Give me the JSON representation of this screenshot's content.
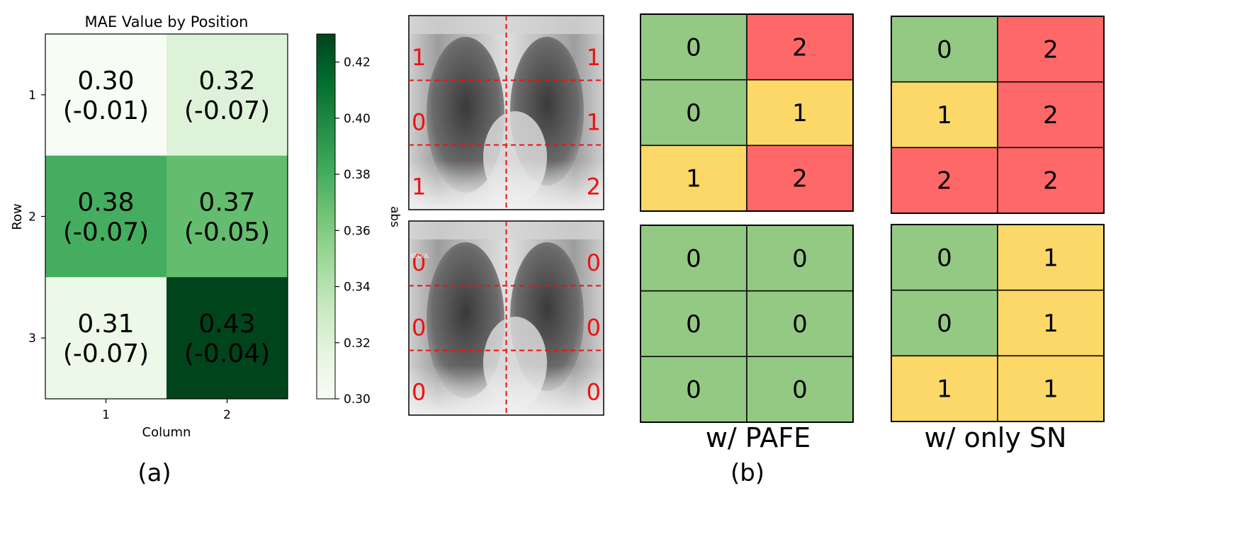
{
  "chart_data": [
    {
      "type": "heatmap",
      "title": "MAE Value by Position",
      "xlabel": "Column",
      "ylabel": "Row",
      "x_ticks": [
        "1",
        "2"
      ],
      "y_ticks": [
        "1",
        "2",
        "3"
      ],
      "cells": [
        [
          {
            "value": 0.3,
            "label": "0.30",
            "delta": "(-0.01)"
          },
          {
            "value": 0.32,
            "label": "0.32",
            "delta": "(-0.07)"
          }
        ],
        [
          {
            "value": 0.38,
            "label": "0.38",
            "delta": "(-0.07)"
          },
          {
            "value": 0.37,
            "label": "0.37",
            "delta": "(-0.05)"
          }
        ],
        [
          {
            "value": 0.31,
            "label": "0.31",
            "delta": "(-0.07)"
          },
          {
            "value": 0.43,
            "label": "0.43",
            "delta": "(-0.04)"
          }
        ]
      ],
      "colorbar": {
        "label": "abs",
        "range": [
          0.3,
          0.43
        ],
        "ticks": [
          "0.30",
          "0.32",
          "0.34",
          "0.36",
          "0.38",
          "0.40",
          "0.42"
        ],
        "colors": [
          "#f7fcf5",
          "#e5f5e0",
          "#c7e9c0",
          "#a1d99b",
          "#74c476",
          "#41ab5d",
          "#238b45",
          "#006d2c",
          "#00441b"
        ]
      },
      "caption": "(a)"
    },
    {
      "type": "table",
      "xray_labels": [
        [
          [
            "1",
            "1"
          ],
          [
            "0",
            "1"
          ],
          [
            "1",
            "2"
          ]
        ],
        [
          [
            "0",
            "0"
          ],
          [
            "0",
            "0"
          ],
          [
            "0",
            "0"
          ]
        ]
      ],
      "xray_overlay_text": "SEOUL",
      "grids": [
        {
          "name": "w/ PAFE",
          "rows": [
            [
              [
                "0",
                "2"
              ],
              [
                "0",
                "1"
              ],
              [
                "1",
                "2"
              ]
            ],
            [
              [
                "0",
                "0"
              ],
              [
                "0",
                "0"
              ],
              [
                "0",
                "0"
              ]
            ]
          ]
        },
        {
          "name": "w/ only SN",
          "rows": [
            [
              [
                "0",
                "2"
              ],
              [
                "1",
                "2"
              ],
              [
                "2",
                "2"
              ]
            ],
            [
              [
                "0",
                "1"
              ],
              [
                "0",
                "1"
              ],
              [
                "1",
                "1"
              ]
            ]
          ]
        }
      ],
      "level_colors": {
        "0": "#93c983",
        "1": "#fcd868",
        "2": "#fe6868"
      },
      "caption": "(b)"
    }
  ]
}
